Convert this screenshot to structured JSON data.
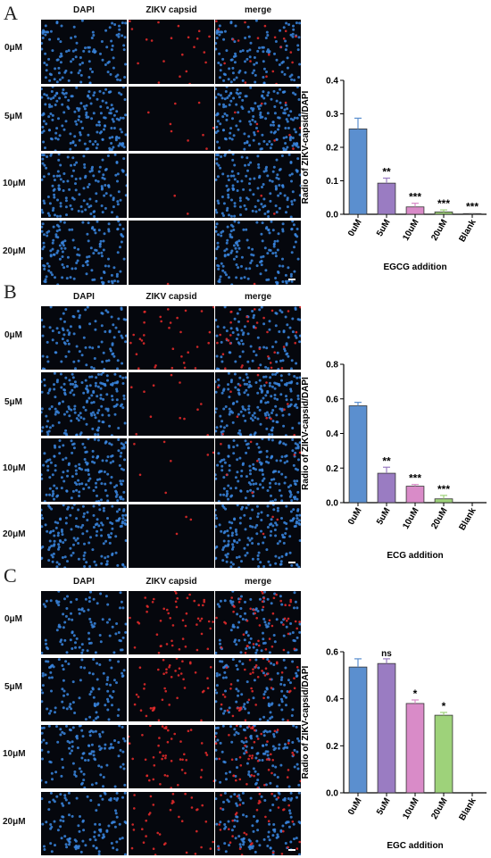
{
  "panels": [
    {
      "letter": "A",
      "columns": [
        "DAPI",
        "ZIKV capsid",
        "merge"
      ],
      "rows": [
        "0μM",
        "5μM",
        "10μM",
        "20μM"
      ],
      "dapi_density": [
        0.55,
        0.95,
        0.75,
        0.75
      ],
      "red_density": [
        0.35,
        0.15,
        0.03,
        0.02
      ],
      "chart_data": {
        "type": "bar",
        "categories": [
          "0uM",
          "5uM",
          "10uM",
          "20uM",
          "Blank"
        ],
        "values": [
          0.255,
          0.093,
          0.022,
          0.007,
          0.002
        ],
        "errors": [
          0.032,
          0.015,
          0.011,
          0.006,
          0.002
        ],
        "significance": [
          "",
          "**",
          "***",
          "***",
          "***"
        ],
        "xlabel": "EGCG addition",
        "ylabel": "Radio of ZIKV-capsid/DAPI",
        "ylim": [
          0,
          0.4
        ],
        "yticks": [
          "0.0",
          "0.1",
          "0.2",
          "0.3",
          "0.4"
        ],
        "colors": [
          "#5b8fcf",
          "#9a7cc2",
          "#d98bc8",
          "#9ed27a",
          "#d9d9d9"
        ]
      }
    },
    {
      "letter": "B",
      "columns": [
        "DAPI",
        "ZIKV capsid",
        "merge"
      ],
      "rows": [
        "0μM",
        "5μM",
        "10μM",
        "20μM"
      ],
      "dapi_density": [
        0.45,
        0.95,
        0.85,
        0.85
      ],
      "red_density": [
        0.55,
        0.2,
        0.12,
        0.05
      ],
      "chart_data": {
        "type": "bar",
        "categories": [
          "0uM",
          "5uM",
          "10uM",
          "20uM",
          "Blank"
        ],
        "values": [
          0.56,
          0.17,
          0.095,
          0.022,
          0.0
        ],
        "errors": [
          0.02,
          0.035,
          0.01,
          0.02,
          0.0
        ],
        "significance": [
          "",
          "**",
          "***",
          "***",
          ""
        ],
        "xlabel": "ECG addition",
        "ylabel": "Radio of ZIKV-capsid/DAPI",
        "ylim": [
          0,
          0.8
        ],
        "yticks": [
          "0.0",
          "0.2",
          "0.4",
          "0.6",
          "0.8"
        ],
        "colors": [
          "#5b8fcf",
          "#9a7cc2",
          "#d98bc8",
          "#9ed27a",
          "#d9d9d9"
        ]
      }
    },
    {
      "letter": "C",
      "columns": [
        "DAPI",
        "ZIKV capsid",
        "merge"
      ],
      "rows": [
        "0μM",
        "5μM",
        "10μM",
        "20μM"
      ],
      "dapi_density": [
        0.4,
        0.4,
        0.5,
        0.55
      ],
      "red_density": [
        0.85,
        0.75,
        0.8,
        0.65
      ],
      "chart_data": {
        "type": "bar",
        "categories": [
          "0uM",
          "5uM",
          "10uM",
          "20uM",
          "Blank"
        ],
        "values": [
          0.535,
          0.55,
          0.38,
          0.33,
          0.0
        ],
        "errors": [
          0.035,
          0.02,
          0.015,
          0.012,
          0.0
        ],
        "significance": [
          "",
          "ns",
          "*",
          "*",
          ""
        ],
        "xlabel": "EGC addition",
        "ylabel": "Radio of ZIKV-capsid/DAPI",
        "ylim": [
          0,
          0.6
        ],
        "yticks": [
          "0.0",
          "0.2",
          "0.4",
          "0.6"
        ],
        "colors": [
          "#5b8fcf",
          "#9a7cc2",
          "#d98bc8",
          "#9ed27a",
          "#d9d9d9"
        ]
      }
    }
  ]
}
